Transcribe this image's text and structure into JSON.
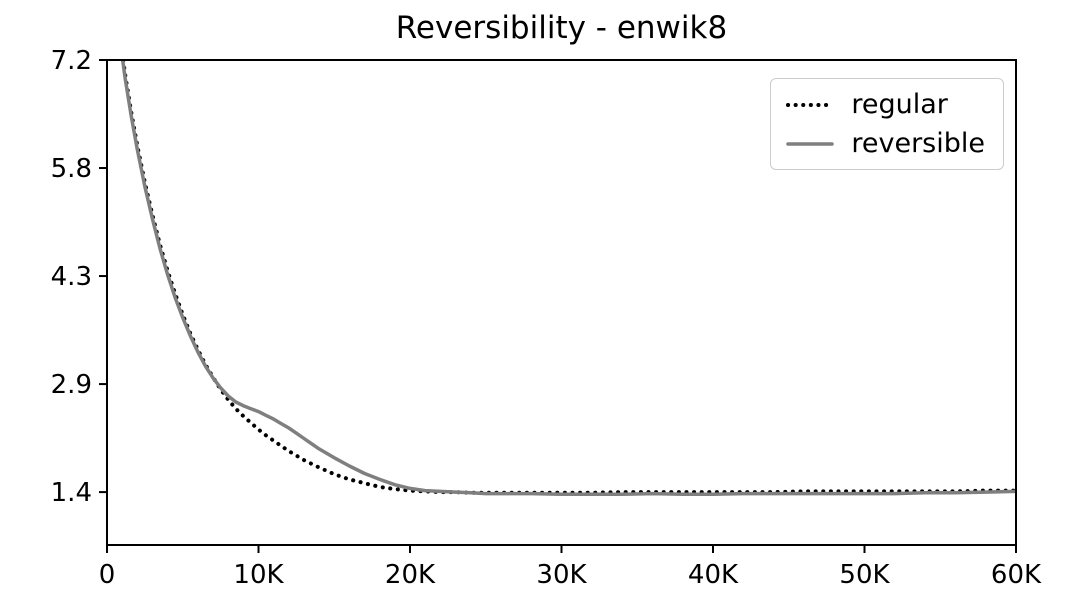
{
  "chart_data": {
    "type": "line",
    "title": "Reversibility - enwik8",
    "xlabel": "",
    "ylabel": "",
    "grid": false,
    "xlim": [
      0,
      60
    ],
    "ylim": [
      0.69,
      7.2
    ],
    "xticks": {
      "values": [
        0,
        10,
        20,
        30,
        40,
        50,
        60
      ],
      "labels": [
        "0",
        "10K",
        "20K",
        "30K",
        "40K",
        "50K",
        "60K"
      ]
    },
    "yticks": {
      "values": [
        1.4,
        2.85,
        4.3,
        5.75,
        7.2
      ],
      "labels": [
        "1.4",
        "2.9",
        "4.3",
        "5.8",
        "7.2"
      ]
    },
    "legend": {
      "position": "upper right",
      "entries": [
        "regular",
        "reversible"
      ]
    },
    "x": [
      0.8,
      1.2,
      1.6,
      2,
      2.5,
      3,
      3.5,
      4,
      4.5,
      5,
      5.5,
      6,
      6.5,
      7,
      7.5,
      8,
      8.5,
      9,
      9.5,
      10,
      10.5,
      11,
      11.5,
      12,
      12.5,
      13,
      13.5,
      14,
      15,
      16,
      17,
      18,
      19,
      20,
      21,
      22,
      23,
      24,
      25,
      26,
      28,
      30,
      32,
      34,
      36,
      38,
      40,
      42,
      44,
      46,
      48,
      50,
      52,
      54,
      56,
      58,
      60
    ],
    "series": [
      {
        "name": "regular",
        "style": "dotted",
        "color": "#000000",
        "values": [
          7.6,
          7.0,
          6.5,
          6.05,
          5.55,
          5.12,
          4.72,
          4.37,
          4.06,
          3.78,
          3.53,
          3.31,
          3.11,
          2.94,
          2.78,
          2.64,
          2.52,
          2.42,
          2.33,
          2.24,
          2.16,
          2.09,
          2.02,
          1.95,
          1.89,
          1.83,
          1.78,
          1.73,
          1.64,
          1.57,
          1.52,
          1.47,
          1.44,
          1.42,
          1.41,
          1.4,
          1.4,
          1.39,
          1.39,
          1.39,
          1.39,
          1.39,
          1.39,
          1.4,
          1.4,
          1.4,
          1.4,
          1.4,
          1.4,
          1.41,
          1.41,
          1.41,
          1.41,
          1.41,
          1.41,
          1.42,
          1.42
        ]
      },
      {
        "name": "reversible",
        "style": "solid",
        "color": "#7f7f7f",
        "values": [
          7.55,
          6.95,
          6.45,
          6.0,
          5.5,
          5.07,
          4.67,
          4.32,
          4.01,
          3.74,
          3.5,
          3.28,
          3.09,
          2.93,
          2.8,
          2.69,
          2.61,
          2.56,
          2.52,
          2.48,
          2.43,
          2.38,
          2.32,
          2.26,
          2.19,
          2.12,
          2.05,
          1.98,
          1.86,
          1.75,
          1.65,
          1.57,
          1.5,
          1.45,
          1.42,
          1.41,
          1.4,
          1.39,
          1.38,
          1.38,
          1.38,
          1.37,
          1.37,
          1.37,
          1.38,
          1.37,
          1.37,
          1.38,
          1.38,
          1.38,
          1.38,
          1.38,
          1.38,
          1.39,
          1.39,
          1.4,
          1.41
        ]
      }
    ]
  }
}
